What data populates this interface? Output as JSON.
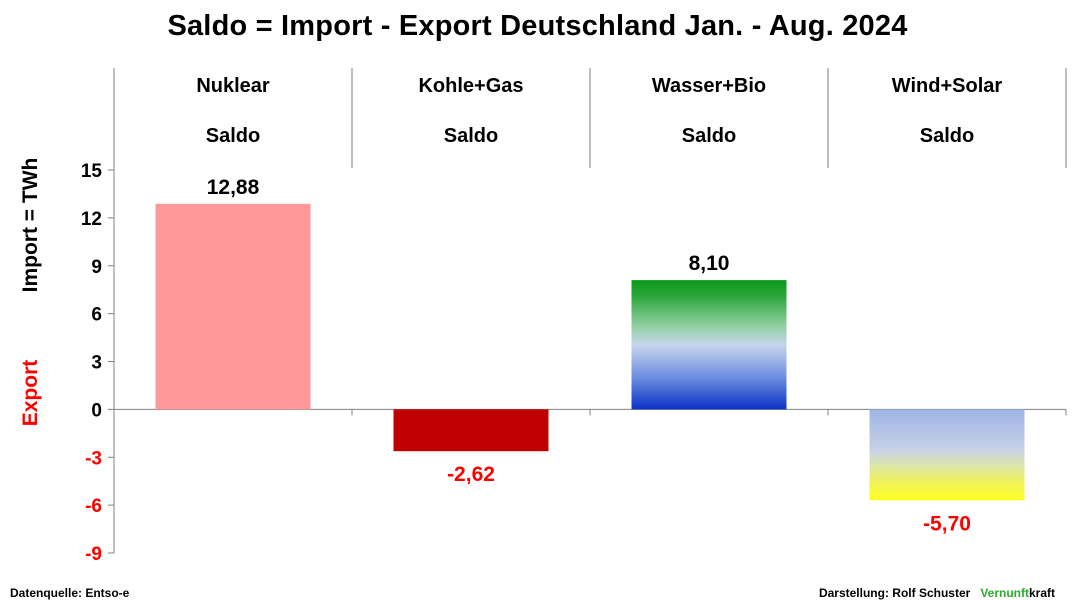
{
  "title": "Saldo = Import - Export Deutschland Jan. - Aug. 2024",
  "footer": {
    "source": "Datenquelle: Entso-e",
    "credit": "Darstellung:  Rolf Schuster",
    "brand_part1": "Vernunft",
    "brand_part2": "kraft"
  },
  "colors": {
    "positive_label": "#000000",
    "negative_label": "#ff0000",
    "axis_title_import": "#000000",
    "axis_title_export": "#ff0000",
    "brand": "#2eaa2e"
  },
  "chart_data": {
    "type": "bar",
    "title": "Saldo = Import - Export Deutschland Jan. - Aug. 2024",
    "categories": [
      "Nuklear",
      "Kohle+Gas",
      "Wasser+Bio",
      "Wind+Solar"
    ],
    "category_sublabels": [
      "Saldo",
      "Saldo",
      "Saldo",
      "Saldo"
    ],
    "values": [
      12.88,
      -2.62,
      8.1,
      -5.7
    ],
    "value_labels": [
      "12,88",
      "-2,62",
      "8,10",
      "-5,70"
    ],
    "bar_fills": [
      "solid-pink",
      "solid-darkred",
      "gradient-green-blue",
      "gradient-blue-yellow"
    ],
    "ylabel_import": "Import =  TWh",
    "ylabel_export": "Export",
    "ylim": [
      -9,
      15
    ],
    "yticks": [
      15,
      12,
      9,
      6,
      3,
      0,
      -3,
      -6,
      -9
    ],
    "ytick_labels": [
      "15",
      "12",
      "9",
      "6",
      "3",
      "0",
      "-3",
      "-6",
      "-9"
    ],
    "grid": false,
    "legend": "none"
  }
}
